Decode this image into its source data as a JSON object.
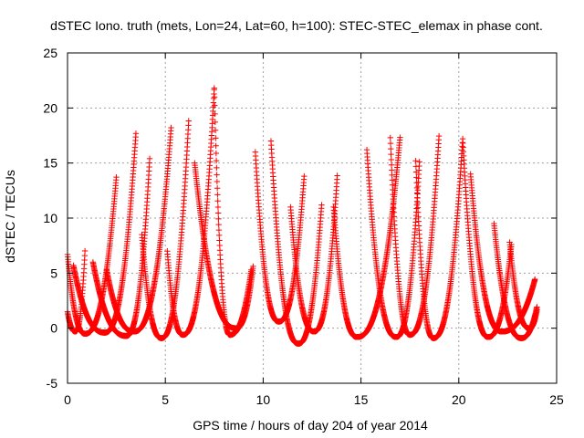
{
  "chart_data": {
    "type": "scatter",
    "title": "dSTEC Iono. truth (mets, Lon=24, Lat=60, h=100): STEC-STEC_elemax in phase cont.",
    "xlabel": "GPS time / hours of day 204 of year 2014",
    "ylabel": "dSTEC  / TECUs",
    "xlim": [
      0,
      25
    ],
    "ylim": [
      -5,
      25
    ],
    "xticks": [
      0,
      5,
      10,
      15,
      20,
      25
    ],
    "yticks": [
      -5,
      0,
      5,
      10,
      15,
      20,
      25
    ],
    "grid": true,
    "legend": "none",
    "marker": "plus",
    "color": "#ff0000",
    "arcs": [
      {
        "start": 0.0,
        "min_t": 0.4,
        "min_v": -0.3,
        "end": 0.9,
        "end_v": 7.3
      },
      {
        "start": 0.0,
        "start_v": 6.7,
        "min_t": 0.9,
        "min_v": -0.5,
        "end": 2.5,
        "end_v": 13.8
      },
      {
        "start": 0.3,
        "start_v": 5.7,
        "min_t": 1.9,
        "min_v": -0.4,
        "end": 3.5,
        "end_v": 17.8
      },
      {
        "start": 1.3,
        "start_v": 6.0,
        "min_t": 3.0,
        "min_v": -0.7,
        "end": 4.2,
        "end_v": 15.4
      },
      {
        "start": 2.0,
        "start_v": 5.3,
        "min_t": 3.4,
        "min_v": -0.3,
        "end": 5.3,
        "end_v": 18.3
      },
      {
        "start": 3.8,
        "start_v": 8.5,
        "min_t": 4.8,
        "min_v": -0.9,
        "end": 6.2,
        "end_v": 19.1
      },
      {
        "start": 5.1,
        "start_v": 7.0,
        "min_t": 5.9,
        "min_v": -0.6,
        "end": 7.5,
        "end_v": 21.8
      },
      {
        "start": 7.5,
        "start_v": 21.8,
        "min_t": 8.3,
        "min_v": -0.6,
        "end": 9.4,
        "end_v": 5.4
      },
      {
        "start": 6.5,
        "start_v": 15.0,
        "min_t": 8.6,
        "min_v": 0.0,
        "end": 9.5,
        "end_v": 5.8
      },
      {
        "start": 9.6,
        "start_v": 16.0,
        "min_t": 10.8,
        "min_v": 0.6,
        "end": 12.1,
        "end_v": 13.9
      },
      {
        "start": 10.4,
        "start_v": 17.0,
        "min_t": 11.8,
        "min_v": -1.4,
        "end": 13.0,
        "end_v": 11.5
      },
      {
        "start": 11.4,
        "start_v": 11.0,
        "min_t": 12.6,
        "min_v": -0.3,
        "end": 13.8,
        "end_v": 14.2
      },
      {
        "start": 13.6,
        "start_v": 11.0,
        "min_t": 14.8,
        "min_v": -0.8,
        "end": 17.0,
        "end_v": 17.4
      },
      {
        "start": 15.3,
        "start_v": 16.2,
        "min_t": 16.8,
        "min_v": -0.8,
        "end": 18.0,
        "end_v": 15.5
      },
      {
        "start": 16.5,
        "start_v": 17.3,
        "min_t": 17.5,
        "min_v": -0.6,
        "end": 19.0,
        "end_v": 17.8
      },
      {
        "start": 17.8,
        "start_v": 15.2,
        "min_t": 18.7,
        "min_v": -0.9,
        "end": 20.2,
        "end_v": 17.2
      },
      {
        "start": 20.2,
        "start_v": 17.2,
        "min_t": 21.5,
        "min_v": -0.8,
        "end": 22.7,
        "end_v": 7.8
      },
      {
        "start": 20.6,
        "start_v": 14.0,
        "min_t": 22.2,
        "min_v": -0.3,
        "end": 23.9,
        "end_v": 4.5
      },
      {
        "start": 21.8,
        "start_v": 9.5,
        "min_t": 23.2,
        "min_v": -0.9,
        "end": 24.0,
        "end_v": 2.0
      },
      {
        "start": 22.6,
        "start_v": 7.8,
        "min_t": 23.6,
        "min_v": 0.0,
        "end": 24.0,
        "end_v": 1.7
      }
    ]
  }
}
